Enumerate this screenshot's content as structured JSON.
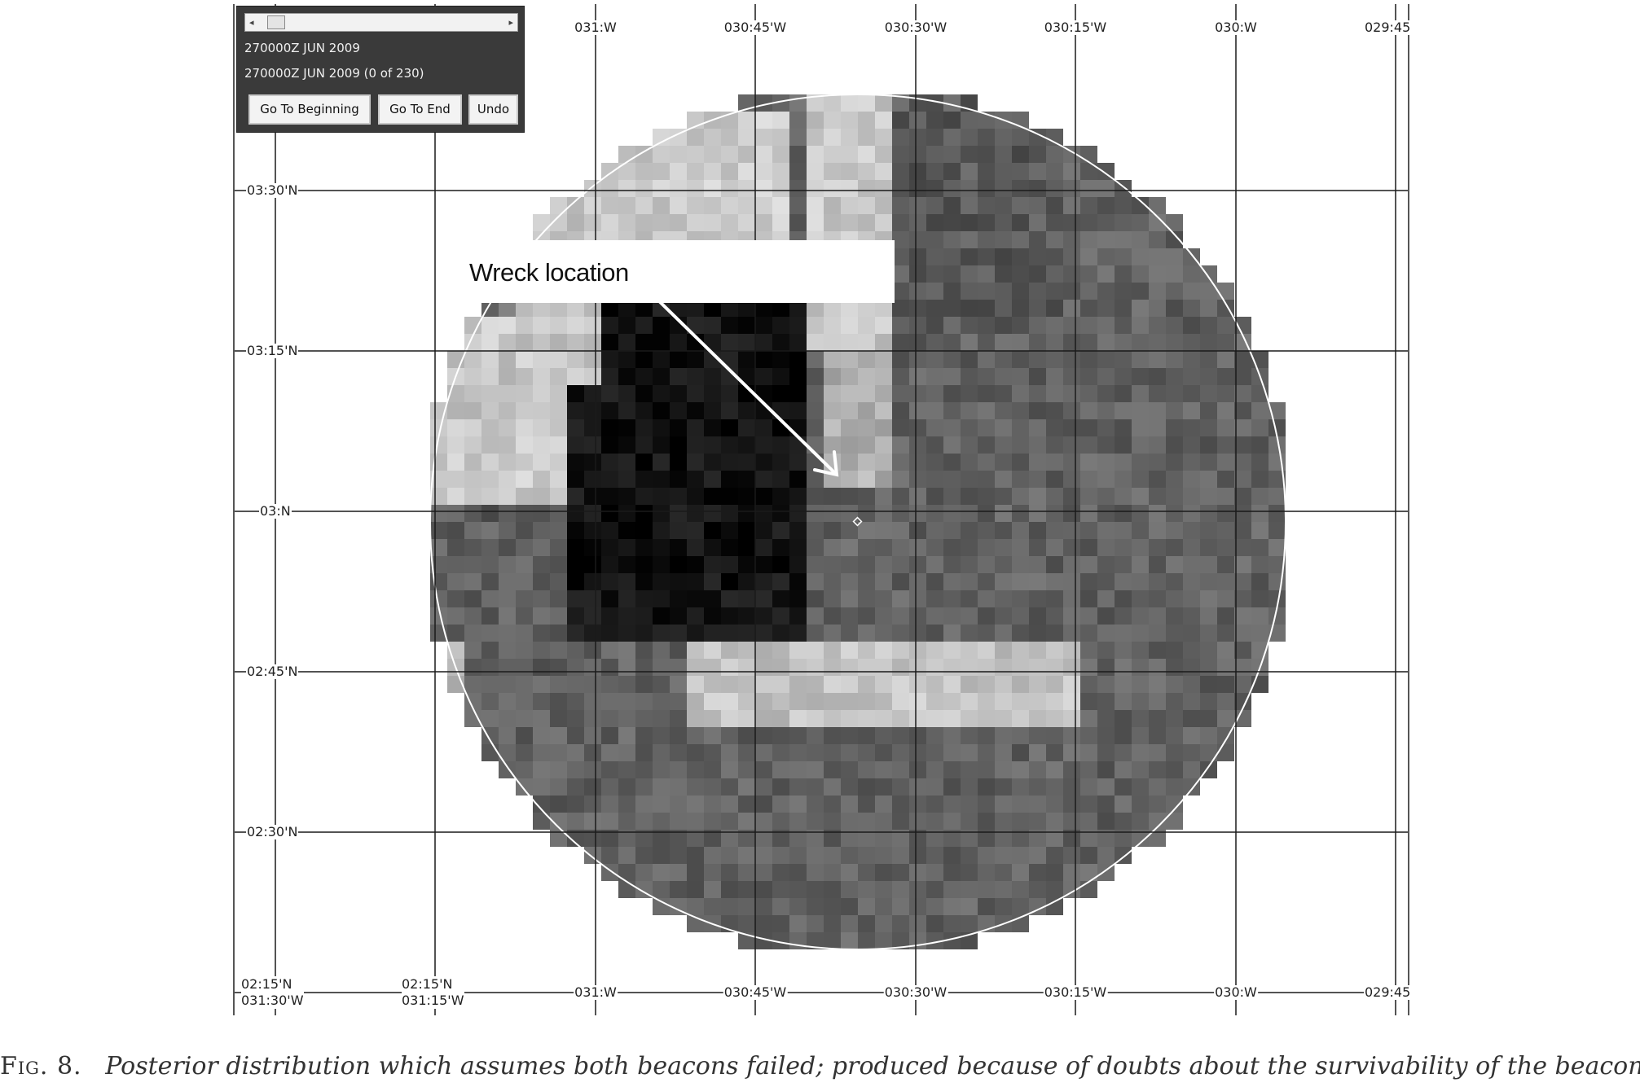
{
  "time_panel": {
    "scrollbar_position": 0,
    "current_time": "270000Z JUN 2009",
    "current_frame_label": "270000Z JUN 2009 (0 of 230)",
    "buttons": {
      "go_to_beginning": "Go To Beginning",
      "go_to_end": "Go To End",
      "undo": "Undo"
    }
  },
  "map": {
    "longitude_labels": [
      "031:W",
      "030:45'W",
      "030:30'W",
      "030:15'W",
      "030:W",
      "029:45"
    ],
    "latitude_labels": [
      "03:30'N",
      "03:15'N",
      "03:N",
      "02:45'N",
      "02:30'N"
    ],
    "corner_labels": [
      {
        "lat": "02:15'N",
        "lon": "031:30'W"
      },
      {
        "lat": "02:15'N",
        "lon": "031:15'W"
      }
    ],
    "annotation": "Wreck location",
    "colors": {
      "circle": "#ffffff",
      "grid": "#1a1a1a",
      "dark_region": "#0d0d0d",
      "light_region": "#d4d4d4"
    }
  },
  "caption": {
    "label": "Fig. 8.",
    "text": "Posterior distribution which assumes both beacons failed; produced because of doubts about the survivability of the beacons."
  }
}
